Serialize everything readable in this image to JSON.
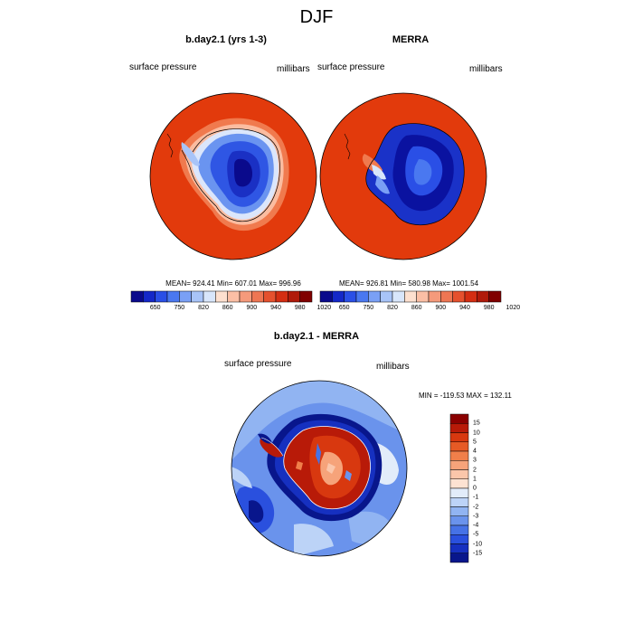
{
  "title": "DJF",
  "panels": [
    {
      "title": "b.day2.1 (yrs 1-3)",
      "left_label": "surface pressure",
      "right_label": "millibars",
      "stats": "MEAN= 924.41   Min= 607.01   Max= 996.96"
    },
    {
      "title": "MERRA",
      "left_label": "surface pressure",
      "right_label": "millibars",
      "stats": "MEAN= 926.81   Min= 580.98   Max= 1001.54"
    }
  ],
  "colorbar_top": {
    "colors": [
      "#0a0a8c",
      "#1428c8",
      "#2a4fe6",
      "#4a78f0",
      "#7aa0f5",
      "#a8c4f8",
      "#d8e6fb",
      "#fde0cf",
      "#fbbfa5",
      "#f59a7b",
      "#ee7653",
      "#e5512e",
      "#d42e12",
      "#b01a0a",
      "#800000"
    ],
    "labels": [
      "650",
      "750",
      "820",
      "860",
      "900",
      "940",
      "980",
      "1020"
    ]
  },
  "diff_panel": {
    "title": "b.day2.1 - MERRA",
    "left_label": "surface pressure",
    "right_label": "millibars",
    "stats": "MIN = -119.53  MAX = 132.11"
  },
  "colorbar_diff": {
    "colors": [
      "#8b0000",
      "#b81a08",
      "#d8380f",
      "#e65a25",
      "#f07f4a",
      "#f6a37a",
      "#fbc6aa",
      "#fde2d2",
      "#e2ecfa",
      "#bcd3f7",
      "#91b4f2",
      "#6a93ec",
      "#4672e6",
      "#2a50de",
      "#1630c0",
      "#08168c"
    ],
    "labels": [
      "15",
      "10",
      "5",
      "4",
      "3",
      "2",
      "1",
      "0",
      "-1",
      "-2",
      "-3",
      "-4",
      "-5",
      "-10",
      "-15"
    ]
  }
}
